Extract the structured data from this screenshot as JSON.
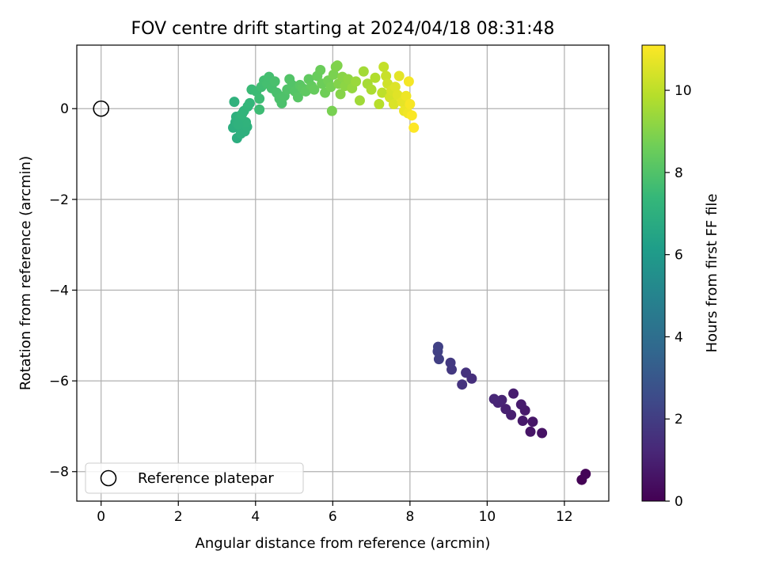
{
  "chart_data": {
    "type": "scatter",
    "title": "FOV centre drift starting at 2024/04/18 08:31:48",
    "xlabel": "Angular distance from reference (arcmin)",
    "ylabel": "Rotation from reference (arcmin)",
    "xlim": [
      -0.63,
      13.15
    ],
    "ylim": [
      -8.65,
      1.4
    ],
    "xticks": [
      0,
      2,
      4,
      6,
      8,
      10,
      12
    ],
    "yticks": [
      -8,
      -6,
      -4,
      -2,
      0
    ],
    "grid": true,
    "legend": {
      "position": "lower-left",
      "entries": [
        "Reference platepar"
      ]
    },
    "reference_point": {
      "x": 0,
      "y": 0
    },
    "colorbar": {
      "label": "Hours from first FF file",
      "colormap": "viridis",
      "range": [
        0,
        11.1
      ],
      "ticks": [
        0,
        2,
        4,
        6,
        8,
        10
      ]
    },
    "colors": {
      "viridis": [
        "#440154",
        "#482878",
        "#3e4a89",
        "#31688e",
        "#26828e",
        "#1f9e89",
        "#35b779",
        "#6ece58",
        "#b5de2b",
        "#fde725"
      ]
    },
    "points": [
      {
        "x": 12.45,
        "y": -8.18,
        "h": 0.05
      },
      {
        "x": 12.55,
        "y": -8.05,
        "h": 0.1
      },
      {
        "x": 11.42,
        "y": -7.15,
        "h": 0.55
      },
      {
        "x": 11.12,
        "y": -7.12,
        "h": 0.6
      },
      {
        "x": 11.18,
        "y": -6.9,
        "h": 0.65
      },
      {
        "x": 10.92,
        "y": -6.88,
        "h": 0.75
      },
      {
        "x": 10.98,
        "y": -6.65,
        "h": 0.8
      },
      {
        "x": 10.88,
        "y": -6.52,
        "h": 0.85
      },
      {
        "x": 10.68,
        "y": -6.28,
        "h": 0.9
      },
      {
        "x": 10.62,
        "y": -6.75,
        "h": 0.95
      },
      {
        "x": 10.48,
        "y": -6.62,
        "h": 1.0
      },
      {
        "x": 10.38,
        "y": -6.42,
        "h": 1.1
      },
      {
        "x": 10.28,
        "y": -6.48,
        "h": 1.15
      },
      {
        "x": 10.18,
        "y": -6.4,
        "h": 1.2
      },
      {
        "x": 9.6,
        "y": -5.95,
        "h": 1.5
      },
      {
        "x": 9.45,
        "y": -5.82,
        "h": 1.6
      },
      {
        "x": 9.35,
        "y": -6.08,
        "h": 1.65
      },
      {
        "x": 9.08,
        "y": -5.75,
        "h": 1.8
      },
      {
        "x": 9.05,
        "y": -5.6,
        "h": 1.85
      },
      {
        "x": 8.75,
        "y": -5.52,
        "h": 2.05
      },
      {
        "x": 8.72,
        "y": -5.35,
        "h": 2.1
      },
      {
        "x": 8.73,
        "y": -5.25,
        "h": 2.15
      },
      {
        "x": 3.52,
        "y": -0.65,
        "h": 6.9
      },
      {
        "x": 3.42,
        "y": -0.42,
        "h": 6.95
      },
      {
        "x": 3.48,
        "y": -0.3,
        "h": 7.0
      },
      {
        "x": 3.5,
        "y": -0.18,
        "h": 7.05
      },
      {
        "x": 3.45,
        "y": 0.15,
        "h": 7.1
      },
      {
        "x": 3.62,
        "y": -0.55,
        "h": 7.05
      },
      {
        "x": 3.72,
        "y": -0.5,
        "h": 7.05
      },
      {
        "x": 3.78,
        "y": -0.4,
        "h": 7.1
      },
      {
        "x": 3.75,
        "y": -0.3,
        "h": 7.15
      },
      {
        "x": 3.6,
        "y": -0.2,
        "h": 7.15
      },
      {
        "x": 3.7,
        "y": -0.05,
        "h": 7.2
      },
      {
        "x": 3.8,
        "y": 0.05,
        "h": 7.3
      },
      {
        "x": 3.65,
        "y": -0.12,
        "h": 7.25
      },
      {
        "x": 3.55,
        "y": -0.35,
        "h": 7.1
      },
      {
        "x": 3.85,
        "y": 0.12,
        "h": 7.35
      },
      {
        "x": 3.9,
        "y": 0.42,
        "h": 7.5
      },
      {
        "x": 4.02,
        "y": 0.38,
        "h": 7.55
      },
      {
        "x": 4.1,
        "y": 0.22,
        "h": 7.6
      },
      {
        "x": 4.1,
        "y": -0.02,
        "h": 7.6
      },
      {
        "x": 4.15,
        "y": 0.48,
        "h": 7.65
      },
      {
        "x": 4.22,
        "y": 0.62,
        "h": 7.7
      },
      {
        "x": 4.3,
        "y": 0.55,
        "h": 7.75
      },
      {
        "x": 4.35,
        "y": 0.7,
        "h": 7.75
      },
      {
        "x": 4.42,
        "y": 0.45,
        "h": 7.8
      },
      {
        "x": 4.5,
        "y": 0.6,
        "h": 7.85
      },
      {
        "x": 4.55,
        "y": 0.35,
        "h": 7.85
      },
      {
        "x": 4.62,
        "y": 0.22,
        "h": 7.9
      },
      {
        "x": 4.68,
        "y": 0.12,
        "h": 7.9
      },
      {
        "x": 4.75,
        "y": 0.28,
        "h": 7.95
      },
      {
        "x": 4.82,
        "y": 0.42,
        "h": 8.0
      },
      {
        "x": 4.88,
        "y": 0.65,
        "h": 8.05
      },
      {
        "x": 4.95,
        "y": 0.52,
        "h": 8.05
      },
      {
        "x": 5.02,
        "y": 0.38,
        "h": 8.1
      },
      {
        "x": 5.1,
        "y": 0.25,
        "h": 8.15
      },
      {
        "x": 5.15,
        "y": 0.52,
        "h": 8.2
      },
      {
        "x": 5.22,
        "y": 0.45,
        "h": 8.25
      },
      {
        "x": 5.3,
        "y": 0.38,
        "h": 8.3
      },
      {
        "x": 5.38,
        "y": 0.65,
        "h": 8.35
      },
      {
        "x": 5.45,
        "y": 0.5,
        "h": 8.4
      },
      {
        "x": 5.52,
        "y": 0.42,
        "h": 8.45
      },
      {
        "x": 5.6,
        "y": 0.72,
        "h": 8.5
      },
      {
        "x": 5.68,
        "y": 0.85,
        "h": 8.55
      },
      {
        "x": 5.72,
        "y": 0.55,
        "h": 8.6
      },
      {
        "x": 5.8,
        "y": 0.35,
        "h": 8.65
      },
      {
        "x": 5.88,
        "y": 0.62,
        "h": 8.7
      },
      {
        "x": 5.95,
        "y": 0.48,
        "h": 8.75
      },
      {
        "x": 5.98,
        "y": -0.05,
        "h": 8.8
      },
      {
        "x": 6.02,
        "y": 0.75,
        "h": 8.85
      },
      {
        "x": 6.08,
        "y": 0.92,
        "h": 8.9
      },
      {
        "x": 6.12,
        "y": 0.95,
        "h": 8.95
      },
      {
        "x": 6.15,
        "y": 0.55,
        "h": 9.0
      },
      {
        "x": 6.2,
        "y": 0.32,
        "h": 9.05
      },
      {
        "x": 6.25,
        "y": 0.7,
        "h": 9.1
      },
      {
        "x": 6.32,
        "y": 0.5,
        "h": 9.15
      },
      {
        "x": 6.4,
        "y": 0.65,
        "h": 9.2
      },
      {
        "x": 6.5,
        "y": 0.45,
        "h": 9.3
      },
      {
        "x": 6.6,
        "y": 0.6,
        "h": 9.4
      },
      {
        "x": 6.7,
        "y": 0.18,
        "h": 9.5
      },
      {
        "x": 6.8,
        "y": 0.82,
        "h": 9.55
      },
      {
        "x": 6.9,
        "y": 0.55,
        "h": 9.6
      },
      {
        "x": 7.0,
        "y": 0.42,
        "h": 9.7
      },
      {
        "x": 7.1,
        "y": 0.68,
        "h": 9.8
      },
      {
        "x": 7.2,
        "y": 0.1,
        "h": 9.9
      },
      {
        "x": 7.28,
        "y": 0.35,
        "h": 10.0
      },
      {
        "x": 7.32,
        "y": 0.92,
        "h": 10.1
      },
      {
        "x": 7.38,
        "y": 0.72,
        "h": 10.2
      },
      {
        "x": 7.42,
        "y": 0.55,
        "h": 10.3
      },
      {
        "x": 7.48,
        "y": 0.25,
        "h": 10.4
      },
      {
        "x": 7.52,
        "y": 0.4,
        "h": 10.45
      },
      {
        "x": 7.58,
        "y": 0.1,
        "h": 10.5
      },
      {
        "x": 7.62,
        "y": 0.48,
        "h": 10.55
      },
      {
        "x": 7.68,
        "y": 0.3,
        "h": 10.6
      },
      {
        "x": 7.72,
        "y": 0.72,
        "h": 10.65
      },
      {
        "x": 7.8,
        "y": 0.15,
        "h": 10.7
      },
      {
        "x": 7.85,
        "y": -0.05,
        "h": 10.8
      },
      {
        "x": 7.9,
        "y": 0.28,
        "h": 10.85
      },
      {
        "x": 7.95,
        "y": -0.1,
        "h": 10.9
      },
      {
        "x": 7.97,
        "y": 0.6,
        "h": 10.95
      },
      {
        "x": 8.0,
        "y": 0.1,
        "h": 11.0
      },
      {
        "x": 8.05,
        "y": -0.15,
        "h": 11.05
      },
      {
        "x": 8.1,
        "y": -0.42,
        "h": 11.1
      }
    ]
  }
}
